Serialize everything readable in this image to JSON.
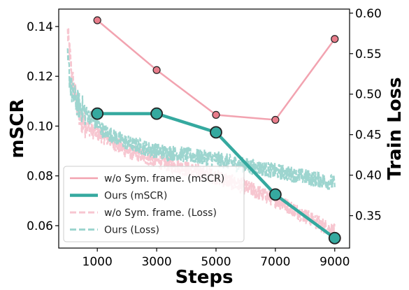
{
  "chart_data": {
    "type": "line",
    "xlabel": "Steps",
    "ylabel_left": "mSCR",
    "ylabel_right": "Train Loss",
    "x_ticks": [
      1000,
      3000,
      5000,
      7000,
      9000
    ],
    "x_tick_labels": [
      "1000",
      "3000",
      "5000",
      "7000",
      "9000"
    ],
    "xlim": [
      -300,
      9500
    ],
    "ylim_left": [
      0.051,
      0.147
    ],
    "ylim_right": [
      0.31,
      0.605
    ],
    "y_ticks_left": [
      0.06,
      0.08,
      0.1,
      0.12,
      0.14
    ],
    "y_tick_labels_left": [
      "0.06",
      "0.08",
      "0.10",
      "0.12",
      "0.14"
    ],
    "y_ticks_right": [
      0.35,
      0.4,
      0.45,
      0.5,
      0.55,
      0.6
    ],
    "y_tick_labels_right": [
      "0.35",
      "0.40",
      "0.45",
      "0.50",
      "0.55",
      "0.60"
    ],
    "grid": false,
    "legend_position": "lower-left",
    "series": [
      {
        "name": "w/o Sym. frame. (mSCR)",
        "axis": "left",
        "style": "solid-marker",
        "color": "#f2a3b0",
        "marker_fill": "#e87d8b",
        "x": [
          1000,
          3000,
          5000,
          7000,
          9000
        ],
        "y": [
          0.1425,
          0.1225,
          0.1045,
          0.1025,
          0.135
        ]
      },
      {
        "name": "Ours (mSCR)",
        "axis": "left",
        "style": "solid-marker-bold",
        "color": "#35a99f",
        "marker_fill": "#35a99f",
        "x": [
          1000,
          3000,
          5000,
          7000,
          9000
        ],
        "y": [
          0.105,
          0.105,
          0.0975,
          0.0725,
          0.055
        ]
      },
      {
        "name": "w/o Sym. frame. (Loss)",
        "axis": "right",
        "style": "dashed-noisy",
        "color": "#f7c6d0",
        "x_start": 0,
        "x_end": 9000,
        "anchors_x": [
          0,
          150,
          400,
          800,
          1200,
          2000,
          3000,
          4000,
          5000,
          6000,
          7000,
          8000,
          9000
        ],
        "anchors_y": [
          0.575,
          0.52,
          0.47,
          0.455,
          0.448,
          0.43,
          0.418,
          0.408,
          0.398,
          0.385,
          0.37,
          0.35,
          0.33
        ]
      },
      {
        "name": "Ours (Loss)",
        "axis": "right",
        "style": "dashed-noisy",
        "color": "#9dd5cf",
        "x_start": 0,
        "x_end": 9000,
        "anchors_x": [
          0,
          150,
          400,
          800,
          1200,
          2000,
          3000,
          4000,
          5000,
          6000,
          7000,
          8000,
          9000
        ],
        "anchors_y": [
          0.54,
          0.5,
          0.485,
          0.47,
          0.455,
          0.44,
          0.43,
          0.425,
          0.42,
          0.412,
          0.405,
          0.398,
          0.39
        ]
      }
    ]
  }
}
